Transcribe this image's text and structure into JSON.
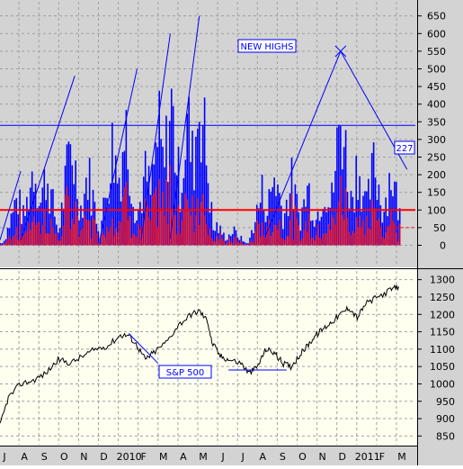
{
  "colors": {
    "top_panel_bg": "#d3d3d3",
    "bottom_panel_bg": "#fffff0",
    "axis_bg": "#d3d3d3",
    "new_highs_blue": "#0000ff",
    "new_highs_red": "#ff0000",
    "reference_line_red": "#ff0000",
    "reference_line_blue": "#0000ff",
    "sp500_line": "#000000",
    "grid": "#a0a0a0"
  },
  "chart_data": [
    {
      "type": "bar",
      "panel": "top",
      "title": "",
      "annotation": "NEW HIGHS",
      "value_label": "227",
      "y_ticks": [
        "0",
        "50",
        "100",
        "150",
        "200",
        "250",
        "300",
        "350",
        "400",
        "450",
        "500",
        "550",
        "600",
        "650"
      ],
      "ylim": [
        -60,
        690
      ],
      "grid": true,
      "horizontal_lines": [
        {
          "value": 340,
          "color": "blue"
        },
        {
          "value": 100,
          "color": "red"
        },
        {
          "value": 50,
          "color": "red",
          "style": "dashed"
        }
      ],
      "trendlines": [
        {
          "from": [
            0.0,
            15
          ],
          "to": [
            0.05,
            210
          ]
        },
        {
          "from": [
            0.05,
            15
          ],
          "to": [
            0.18,
            480
          ]
        },
        {
          "from": [
            0.24,
            15
          ],
          "to": [
            0.33,
            500
          ]
        },
        {
          "from": [
            0.34,
            15
          ],
          "to": [
            0.41,
            600
          ]
        },
        {
          "from": [
            0.41,
            20
          ],
          "to": [
            0.48,
            650
          ]
        },
        {
          "from": [
            0.64,
            30
          ],
          "to": [
            0.82,
            550
          ]
        },
        {
          "from": [
            0.82,
            550
          ],
          "to": [
            0.98,
            215
          ]
        }
      ],
      "peak_marker": {
        "x": 0.82,
        "y": 550
      },
      "approx_peaks": [
        {
          "x": 0.04,
          "value": 200
        },
        {
          "x": 0.08,
          "value": 340
        },
        {
          "x": 0.11,
          "value": 300
        },
        {
          "x": 0.17,
          "value": 430
        },
        {
          "x": 0.21,
          "value": 300
        },
        {
          "x": 0.27,
          "value": 420
        },
        {
          "x": 0.3,
          "value": 500
        },
        {
          "x": 0.35,
          "value": 300
        },
        {
          "x": 0.38,
          "value": 470
        },
        {
          "x": 0.41,
          "value": 590
        },
        {
          "x": 0.45,
          "value": 520
        },
        {
          "x": 0.48,
          "value": 650
        },
        {
          "x": 0.52,
          "value": 80
        },
        {
          "x": 0.56,
          "value": 60
        },
        {
          "x": 0.63,
          "value": 220
        },
        {
          "x": 0.66,
          "value": 300
        },
        {
          "x": 0.7,
          "value": 260
        },
        {
          "x": 0.74,
          "value": 240
        },
        {
          "x": 0.78,
          "value": 260
        },
        {
          "x": 0.82,
          "value": 550
        },
        {
          "x": 0.86,
          "value": 350
        },
        {
          "x": 0.9,
          "value": 340
        },
        {
          "x": 0.94,
          "value": 310
        }
      ]
    },
    {
      "type": "line",
      "panel": "bottom",
      "title": "",
      "annotation": "S&P 500",
      "y_ticks": [
        "850",
        "900",
        "950",
        "1000",
        "1050",
        "1100",
        "1150",
        "1200",
        "1250",
        "1300"
      ],
      "ylim": [
        825,
        1325
      ],
      "grid": true,
      "x_tick_labels": [
        "J",
        "A",
        "S",
        "O",
        "N",
        "D",
        "2010",
        "F",
        "M",
        "A",
        "M",
        "J",
        "J",
        "A",
        "S",
        "O",
        "N",
        "D",
        "2011",
        "F",
        "M"
      ],
      "series": [
        {
          "values_xy": [
            [
              0.0,
              880
            ],
            [
              0.02,
              960
            ],
            [
              0.05,
              1000
            ],
            [
              0.08,
              1010
            ],
            [
              0.11,
              1030
            ],
            [
              0.14,
              1070
            ],
            [
              0.17,
              1060
            ],
            [
              0.2,
              1080
            ],
            [
              0.23,
              1100
            ],
            [
              0.26,
              1110
            ],
            [
              0.29,
              1140
            ],
            [
              0.31,
              1140
            ],
            [
              0.33,
              1110
            ],
            [
              0.35,
              1070
            ],
            [
              0.37,
              1090
            ],
            [
              0.4,
              1120
            ],
            [
              0.43,
              1170
            ],
            [
              0.46,
              1200
            ],
            [
              0.48,
              1210
            ],
            [
              0.5,
              1180
            ],
            [
              0.51,
              1120
            ],
            [
              0.53,
              1080
            ],
            [
              0.55,
              1070
            ],
            [
              0.58,
              1060
            ],
            [
              0.6,
              1030
            ],
            [
              0.62,
              1050
            ],
            [
              0.64,
              1100
            ],
            [
              0.66,
              1090
            ],
            [
              0.68,
              1060
            ],
            [
              0.7,
              1050
            ],
            [
              0.72,
              1080
            ],
            [
              0.74,
              1110
            ],
            [
              0.76,
              1140
            ],
            [
              0.78,
              1160
            ],
            [
              0.8,
              1180
            ],
            [
              0.82,
              1200
            ],
            [
              0.84,
              1220
            ],
            [
              0.86,
              1190
            ],
            [
              0.88,
              1230
            ],
            [
              0.91,
              1250
            ],
            [
              0.94,
              1270
            ],
            [
              0.96,
              1280
            ]
          ]
        }
      ],
      "trendlines": [
        {
          "from": [
            0.31,
            1145
          ],
          "to": [
            0.38,
            1060
          ]
        },
        {
          "from": [
            0.55,
            1040
          ],
          "to": [
            0.69,
            1040
          ]
        }
      ]
    }
  ]
}
